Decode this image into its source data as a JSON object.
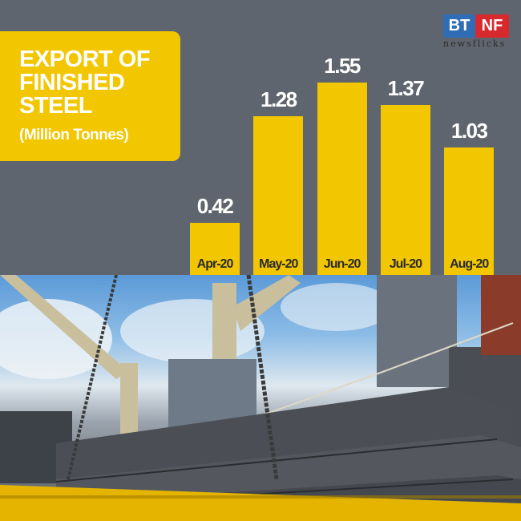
{
  "title": {
    "main": "EXPORT OF\nFINISHED\nSTEEL",
    "unit": "(Million Tonnes)"
  },
  "logo": {
    "left": "BT",
    "right": "NF",
    "tagline": "newsflicks",
    "colors": {
      "left": "#2f6db5",
      "right": "#d8292f"
    }
  },
  "colors": {
    "background": "#5f656e",
    "bar": "#f2c600",
    "value_text": "#ffffff",
    "label_text": "#2a2a2a"
  },
  "bars": [
    {
      "label": "Apr-20",
      "value": "0.42"
    },
    {
      "label": "May-20",
      "value": "1.28"
    },
    {
      "label": "Jun-20",
      "value": "1.55"
    },
    {
      "label": "Jul-20",
      "value": "1.37"
    },
    {
      "label": "Aug-20",
      "value": "1.03"
    }
  ],
  "photo": {
    "subject": "steel-slabs-on-ship-deck-photo"
  },
  "chart_data": {
    "type": "bar",
    "title": "EXPORT OF FINISHED STEEL",
    "subtitle": "(Million Tonnes)",
    "categories": [
      "Apr-20",
      "May-20",
      "Jun-20",
      "Jul-20",
      "Aug-20"
    ],
    "values": [
      0.42,
      1.28,
      1.55,
      1.37,
      1.03
    ],
    "xlabel": "",
    "ylabel": "Million Tonnes",
    "ylim": [
      0,
      1.6
    ],
    "grid": false,
    "legend": "none",
    "data_labels": true
  }
}
